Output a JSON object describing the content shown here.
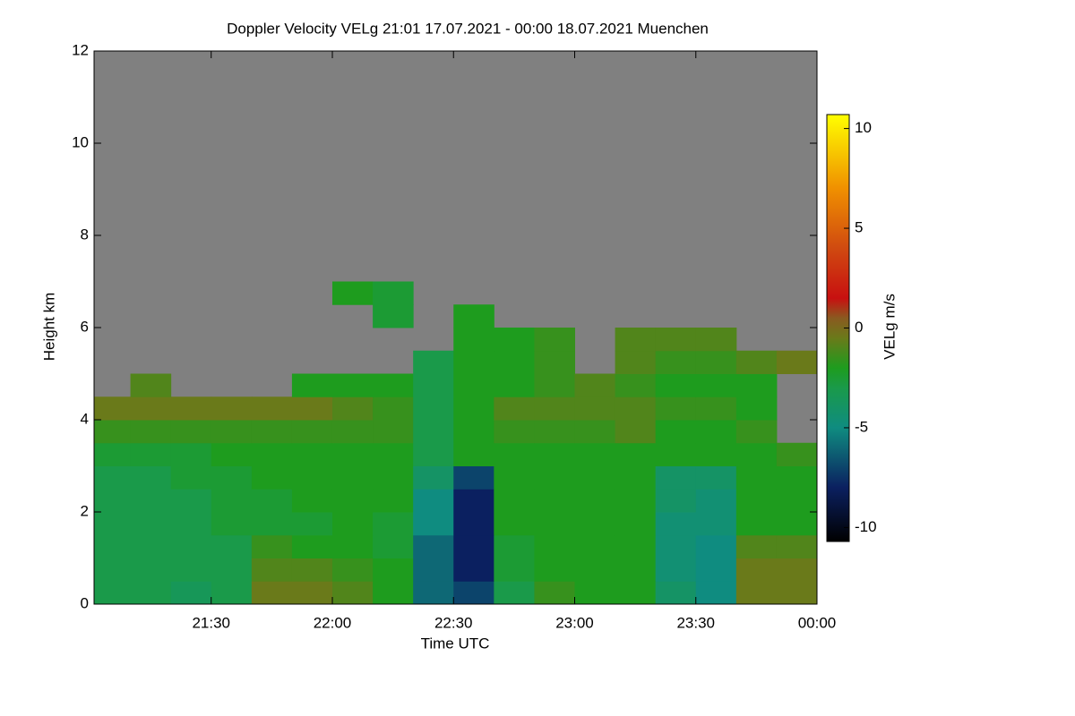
{
  "chart_data": {
    "type": "heatmap",
    "title": "Doppler Velocity VELg   21:01 17.07.2021 - 00:00 18.07.2021 Muenchen",
    "xlabel": "Time UTC",
    "ylabel": "Height km",
    "colorbar_label": "VELg m/s",
    "xlim": [
      1,
      180
    ],
    "xticks": [
      {
        "value": 30,
        "label": "21:30"
      },
      {
        "value": 60,
        "label": "22:00"
      },
      {
        "value": 90,
        "label": "22:30"
      },
      {
        "value": 120,
        "label": "23:00"
      },
      {
        "value": 150,
        "label": "23:30"
      },
      {
        "value": 180,
        "label": "00:00"
      }
    ],
    "ylim": [
      0,
      12
    ],
    "yticks": [
      0,
      2,
      4,
      6,
      8,
      10,
      12
    ],
    "clim": [
      -10.7,
      10.7
    ],
    "cticks": [
      -10,
      -5,
      0,
      5,
      10
    ],
    "colorscale": [
      [
        -10.7,
        "#000000"
      ],
      [
        -8,
        "#0b2060"
      ],
      [
        -5,
        "#0f8c80"
      ],
      [
        -3,
        "#1a9a4a"
      ],
      [
        -2,
        "#1e9c1e"
      ],
      [
        -0.5,
        "#6a7a1a"
      ],
      [
        0.5,
        "#8a5a20"
      ],
      [
        1.5,
        "#c81010"
      ],
      [
        4,
        "#d04a10"
      ],
      [
        7,
        "#f09000"
      ],
      [
        10.7,
        "#ffff00"
      ]
    ],
    "background": "#808080",
    "x": [
      1,
      10,
      20,
      30,
      40,
      50,
      60,
      70,
      80,
      90,
      100,
      110,
      120,
      130,
      140,
      150,
      160,
      170,
      180
    ],
    "y": [
      0,
      0.5,
      1,
      1.5,
      2,
      2.5,
      3,
      3.5,
      4,
      4.5,
      5,
      5.5,
      6,
      6.5,
      7
    ],
    "values": [
      [
        -3,
        -3,
        -3.5,
        -3,
        -0.5,
        -0.5,
        -1,
        -2,
        -6,
        -7,
        -3,
        -1.5,
        -2,
        -2,
        -4,
        -5,
        -0.5,
        -0.5
      ],
      [
        -3,
        -3,
        -3,
        -3,
        -1,
        -1,
        -1.5,
        -2,
        -6,
        -8,
        -2.5,
        -2,
        -2,
        -2,
        -4.5,
        -5,
        -0.5,
        -0.5
      ],
      [
        -3,
        -3,
        -3,
        -3,
        -1.5,
        -2,
        -2,
        -2.5,
        -6,
        -8,
        -2.5,
        -2,
        -2,
        -2,
        -4.5,
        -5,
        -1,
        -1
      ],
      [
        -3,
        -3,
        -3,
        -2.5,
        -2.5,
        -2.5,
        -2,
        -2.5,
        -5,
        -8,
        -2,
        -2,
        -2,
        -2,
        -4.5,
        -4.5,
        -2,
        -2
      ],
      [
        -3,
        -3,
        -3,
        -2.5,
        -2.5,
        -2,
        -2,
        -2,
        -5,
        -8,
        -2,
        -2,
        -2,
        -2,
        -4,
        -4.5,
        -2,
        -2
      ],
      [
        -3,
        -3,
        -2.5,
        -2.5,
        -2,
        -2,
        -2,
        -2,
        -4,
        -7,
        -2,
        -2,
        -2,
        -2,
        -4,
        -4,
        -2,
        -2
      ],
      [
        -2.5,
        -2.5,
        -2.5,
        -2,
        -2,
        -2,
        -2,
        -2,
        -3,
        -2,
        -2,
        -2,
        -2,
        -2,
        -2,
        -2,
        -2,
        -1.5
      ],
      [
        -1.5,
        -1.5,
        -1.5,
        -1.5,
        -1.5,
        -1.5,
        -1.5,
        -1.5,
        -3,
        -2,
        -1.5,
        -1.5,
        -1.5,
        -1,
        -2,
        -2,
        -1.5,
        null
      ],
      [
        -0.5,
        -0.5,
        -0.5,
        -0.5,
        -0.5,
        -0.5,
        -1,
        -1.5,
        -3,
        -2,
        -1,
        -1,
        -1,
        -1,
        -1.5,
        -1.5,
        -2,
        null
      ],
      [
        null,
        -1,
        null,
        null,
        null,
        -2,
        -2,
        -2,
        -3,
        -2,
        -2,
        -1.5,
        -1,
        -1.5,
        -2,
        -2,
        -2,
        null
      ],
      [
        null,
        null,
        null,
        null,
        null,
        null,
        null,
        null,
        -3,
        -2,
        -2,
        -1.5,
        null,
        -1,
        -1.5,
        -1.5,
        -1,
        -0.5
      ],
      [
        null,
        null,
        null,
        null,
        null,
        null,
        null,
        null,
        null,
        -2,
        -2,
        -1.5,
        null,
        -1,
        -1,
        -1,
        null,
        null
      ],
      [
        null,
        null,
        null,
        null,
        null,
        null,
        null,
        -2.5,
        null,
        -2,
        null,
        null,
        null,
        null,
        null,
        null,
        null,
        null
      ],
      [
        null,
        null,
        null,
        null,
        null,
        null,
        -2,
        -2.5,
        null,
        null,
        null,
        null,
        null,
        null,
        null,
        null,
        null,
        null
      ]
    ]
  }
}
